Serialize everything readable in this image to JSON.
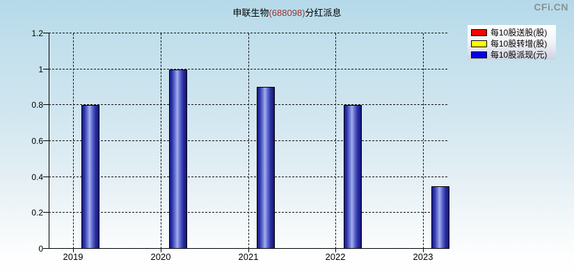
{
  "header": {
    "title_company": "申联生物",
    "title_code": "(688098)",
    "title_suffix": "分红派息",
    "watermark": "CFi.CN"
  },
  "legend": {
    "items": [
      {
        "name": "red",
        "label": "每10股送股(股)",
        "color": "#ff0000"
      },
      {
        "name": "yellow",
        "label": "每10股转增(股)",
        "color": "#ffff00"
      },
      {
        "name": "blue",
        "label": "每10股派现(元)",
        "color": "#0000ee"
      }
    ]
  },
  "chart_data": {
    "type": "bar",
    "title": "申联生物(688098)分红派息",
    "categories": [
      "2019",
      "2020",
      "2021",
      "2022",
      "2023"
    ],
    "series": [
      {
        "name": "每10股派现(元)",
        "color": "#2126b4",
        "values": [
          0.8,
          1,
          0.9,
          0.8,
          0.35
        ]
      }
    ],
    "legend_entries": [
      "每10股送股(股)",
      "每10股转增(股)",
      "每10股派现(元)"
    ],
    "xlabel": "",
    "ylabel": "",
    "ylim": [
      0,
      1.2
    ],
    "ytick_values": [
      0,
      0.2,
      0.4,
      0.6,
      0.8,
      1,
      1.2
    ],
    "ytick_labels": [
      "0",
      "0.2",
      "0.4",
      "0.6",
      "0.8",
      "1",
      "1.2"
    ],
    "grid": "dashed",
    "legend_position": "top-right"
  },
  "colors": {
    "background_top": "#b5d9e9",
    "background_bottom": "#ffffff",
    "title_code_color": "#993333",
    "grid_color": "#111111",
    "bar_edge": "#14147c",
    "bar_highlight": "#a4adea",
    "bar_outline": "#000000",
    "watermark_color": "#8a9096"
  }
}
